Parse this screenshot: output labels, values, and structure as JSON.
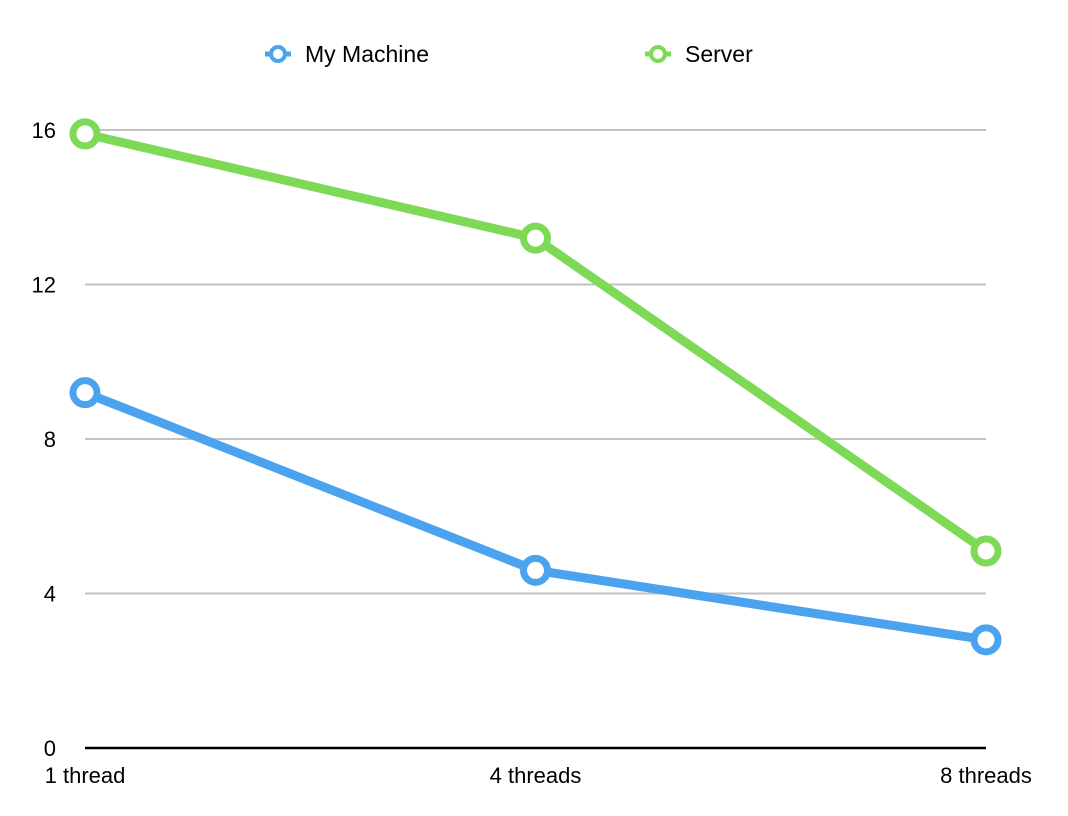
{
  "chart_data": {
    "type": "line",
    "categories": [
      "1 thread",
      "4 threads",
      "8 threads"
    ],
    "series": [
      {
        "name": "My Machine",
        "color": "#4ba3f0",
        "values": [
          9.2,
          4.6,
          2.8
        ]
      },
      {
        "name": "Server",
        "color": "#7ed957",
        "values": [
          15.9,
          13.2,
          5.1
        ]
      }
    ],
    "y_ticks": [
      "0",
      "4",
      "8",
      "12",
      "16"
    ],
    "ylim": [
      0,
      16
    ],
    "grid": true,
    "legend_position": "top-center",
    "title": "",
    "xlabel": "",
    "ylabel": ""
  }
}
